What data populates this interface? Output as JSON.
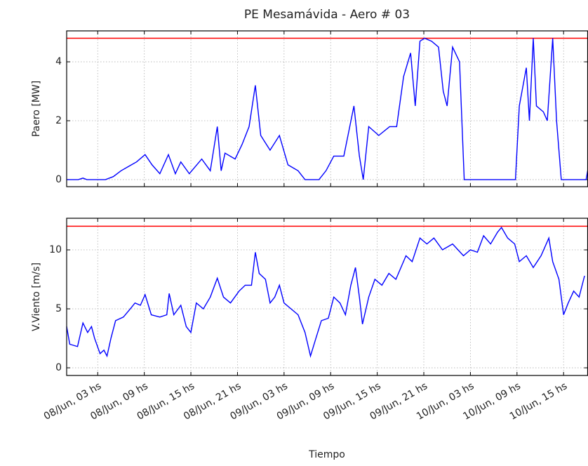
{
  "chart_data": [
    {
      "type": "line",
      "title": "PE Mesamávida - Aero # 03",
      "ylabel": "Paero [MW]",
      "color": "#0000ff",
      "x": [
        -1,
        0.5,
        1.1,
        1.6,
        2.6,
        4,
        5,
        6,
        7,
        8,
        9.1,
        10,
        11,
        12.1,
        13,
        13.7,
        14.8,
        16.4,
        17.5,
        18.4,
        18.9,
        19.4,
        20.7,
        21.6,
        22.5,
        23.3,
        24,
        25.2,
        26.4,
        27.5,
        28.8,
        29.7,
        31.5,
        32.4,
        33.4,
        34.7,
        36,
        36.7,
        37.2,
        37.9,
        39.2,
        40.6,
        41.5,
        42.4,
        43.3,
        43.9,
        44.5,
        45.1,
        46,
        46.9,
        47.5,
        48,
        48.7,
        49.6,
        50.2,
        56.8,
        57.3,
        58.2,
        58.6,
        59.1,
        59.5,
        60.4,
        60.9,
        61.6,
        62.1,
        62.7,
        65.9,
        66.1
      ],
      "values": [
        0,
        0,
        0.05,
        0,
        0,
        0,
        0.1,
        0.3,
        0.45,
        0.6,
        0.85,
        0.5,
        0.2,
        0.85,
        0.2,
        0.6,
        0.2,
        0.7,
        0.3,
        1.8,
        0.3,
        0.9,
        0.7,
        1.2,
        1.8,
        3.2,
        1.5,
        1.0,
        1.5,
        0.5,
        0.3,
        0,
        0,
        0.3,
        0.8,
        0.8,
        2.5,
        0.8,
        0,
        1.8,
        1.5,
        1.8,
        1.8,
        3.5,
        4.3,
        2.5,
        4.7,
        4.8,
        4.7,
        4.5,
        3.0,
        2.5,
        4.5,
        4.0,
        0,
        0,
        2.5,
        3.8,
        2.0,
        4.8,
        2.5,
        2.3,
        2.0,
        4.8,
        2.0,
        0,
        0,
        0.3
      ],
      "xlim": [
        -1,
        66.1
      ],
      "xticks": [
        3,
        9,
        15,
        21,
        27,
        33,
        39,
        45,
        51,
        57,
        63
      ],
      "ylim": [
        -0.24,
        5.05
      ],
      "yticks": [
        0,
        2,
        4
      ],
      "grid": true,
      "hline": {
        "value": 4.8,
        "color": "#ff0000"
      }
    },
    {
      "type": "line",
      "ylabel": "V.Viento [m/s]",
      "xlabel": "Tiempo",
      "color": "#0000ff",
      "x": [
        -1,
        -0.6,
        0.4,
        1.1,
        1.7,
        2.2,
        2.6,
        3.3,
        3.8,
        4.2,
        4.7,
        5.3,
        6.3,
        7.2,
        7.8,
        8.5,
        9.1,
        9.9,
        11,
        11.9,
        12.2,
        12.8,
        13.7,
        14.4,
        15,
        15.7,
        16.6,
        17.5,
        18.4,
        19.2,
        20.1,
        21.2,
        22,
        22.8,
        23.3,
        23.8,
        24.6,
        25.2,
        25.8,
        26.4,
        27,
        27.9,
        28.8,
        29.7,
        30.4,
        31.1,
        31.8,
        32.7,
        33.4,
        34.2,
        34.9,
        35.6,
        36.2,
        36.7,
        37.1,
        37.9,
        38.7,
        39.6,
        40.5,
        41.4,
        42.7,
        43.5,
        44.5,
        45.4,
        46.3,
        47.4,
        48.7,
        50.1,
        51,
        51.9,
        52.7,
        53.6,
        54.5,
        55,
        55.8,
        56.7,
        57.3,
        58.2,
        59.1,
        60.1,
        61.1,
        61.6,
        62.4,
        63,
        63.6,
        64.3,
        65,
        65.7
      ],
      "values": [
        3.5,
        2.0,
        1.8,
        3.8,
        3.0,
        3.5,
        2.5,
        1.2,
        1.5,
        1.0,
        2.5,
        4.0,
        4.3,
        5.0,
        5.5,
        5.3,
        6.2,
        4.5,
        4.3,
        4.5,
        6.3,
        4.5,
        5.3,
        3.5,
        3.0,
        5.5,
        5.0,
        6.0,
        7.6,
        6.0,
        5.5,
        6.5,
        7.0,
        7.0,
        9.8,
        8.0,
        7.5,
        5.5,
        6.0,
        7.0,
        5.5,
        5.0,
        4.5,
        3.0,
        1.0,
        2.5,
        4.0,
        4.2,
        6.0,
        5.5,
        4.5,
        7.0,
        8.5,
        6.0,
        3.7,
        6.0,
        7.5,
        7.0,
        8.0,
        7.5,
        9.5,
        9.0,
        11.0,
        10.5,
        11.0,
        10.0,
        10.5,
        9.5,
        10.0,
        9.8,
        11.2,
        10.5,
        11.5,
        11.9,
        11.0,
        10.5,
        9.0,
        9.5,
        8.5,
        9.5,
        11.0,
        9.0,
        7.5,
        4.5,
        5.5,
        6.5,
        6.0,
        7.8
      ],
      "xlim": [
        -1,
        66.1
      ],
      "xticks": [
        {
          "value": 3,
          "label": "08/Jun, 03 hs"
        },
        {
          "value": 9,
          "label": "08/Jun, 09 hs"
        },
        {
          "value": 15,
          "label": "08/Jun, 15 hs"
        },
        {
          "value": 21,
          "label": "08/Jun, 21 hs"
        },
        {
          "value": 27,
          "label": "09/Jun, 03 hs"
        },
        {
          "value": 33,
          "label": "09/Jun, 09 hs"
        },
        {
          "value": 39,
          "label": "09/Jun, 15 hs"
        },
        {
          "value": 45,
          "label": "09/Jun, 21 hs"
        },
        {
          "value": 51,
          "label": "10/Jun, 03 hs"
        },
        {
          "value": 57,
          "label": "10/Jun, 09 hs"
        },
        {
          "value": 63,
          "label": "10/Jun, 15 hs"
        }
      ],
      "ylim": [
        -0.65,
        12.68
      ],
      "yticks": [
        0,
        5,
        10
      ],
      "grid": true,
      "hline": {
        "value": 12,
        "color": "#ff0000"
      }
    }
  ]
}
